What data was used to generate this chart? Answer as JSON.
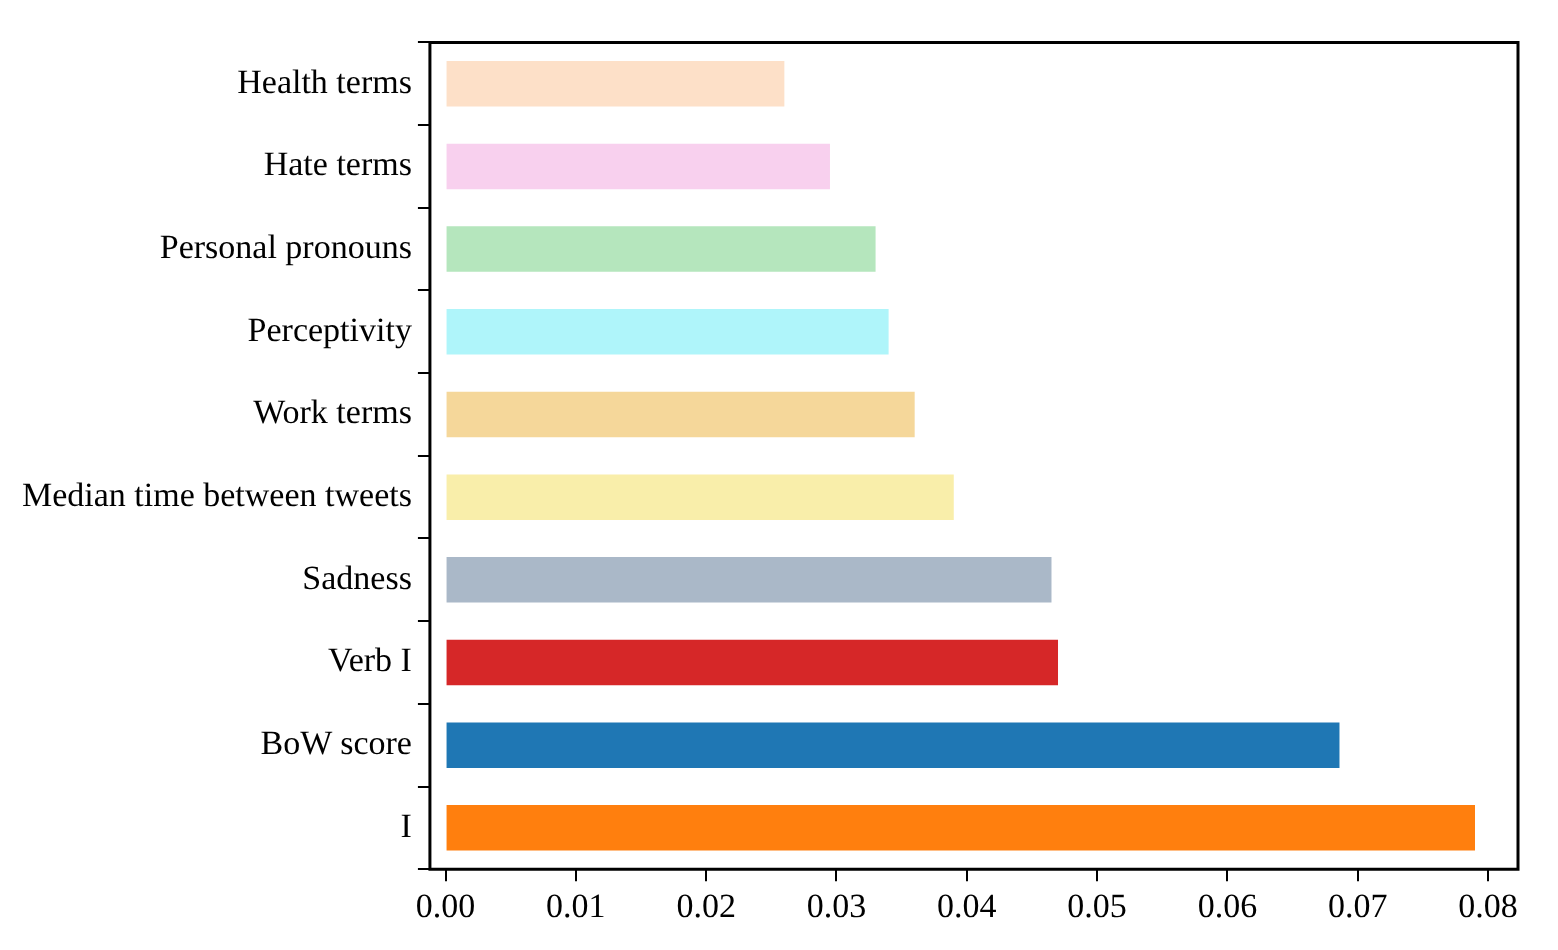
{
  "chart_data": {
    "type": "bar",
    "orientation": "horizontal",
    "categories": [
      "Health terms",
      "Hate terms",
      "Personal pronouns",
      "Perceptivity",
      "Work terms",
      "Median time between tweets",
      "Sadness",
      "Verb I",
      "BoW score",
      "I"
    ],
    "values": [
      0.026,
      0.0295,
      0.033,
      0.034,
      0.036,
      0.039,
      0.0465,
      0.047,
      0.0686,
      0.079
    ],
    "colors": [
      "#fde0c8",
      "#f8d0ee",
      "#b5e6bd",
      "#aff5fa",
      "#f5d79a",
      "#f9eeaa",
      "#aab8c8",
      "#d62728",
      "#1f77b4",
      "#ff7f0e"
    ],
    "xlim": [
      -0.0012,
      0.0823
    ],
    "xticks": [
      {
        "value": 0,
        "label": "0.00"
      },
      {
        "value": 0.01,
        "label": "0.01"
      },
      {
        "value": 0.02,
        "label": "0.02"
      },
      {
        "value": 0.03,
        "label": "0.03"
      },
      {
        "value": 0.04,
        "label": "0.04"
      },
      {
        "value": 0.05,
        "label": "0.05"
      },
      {
        "value": 0.06,
        "label": "0.06"
      },
      {
        "value": 0.07,
        "label": "0.07"
      },
      {
        "value": 0.08,
        "label": "0.08"
      }
    ],
    "grid": false,
    "legend": false
  }
}
